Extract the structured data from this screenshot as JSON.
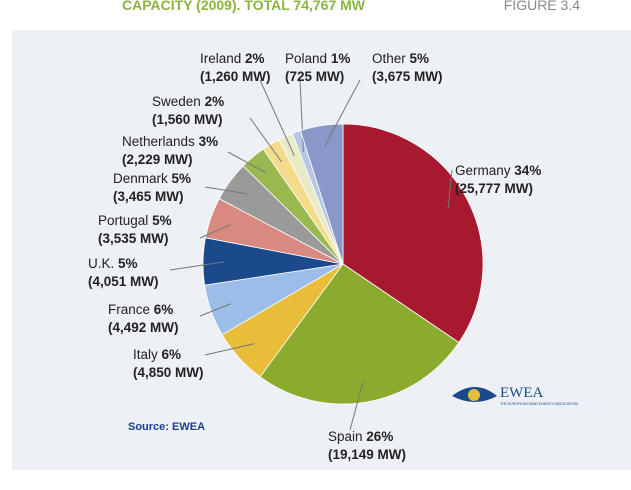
{
  "chart_data": {
    "type": "pie",
    "title": "CAPACITY (2009). TOTAL 74,767 MW",
    "figure_label": "FIGURE 3.4",
    "source": "Source: EWEA",
    "logo": {
      "name": "EWEA",
      "tagline": "THE EUROPEAN WIND ENERGY ASSOCIATION"
    },
    "categories": [
      "Germany",
      "Spain",
      "Italy",
      "France",
      "U.K.",
      "Portugal",
      "Denmark",
      "Netherlands",
      "Sweden",
      "Ireland",
      "Poland",
      "Other"
    ],
    "values": [
      25777,
      19149,
      4850,
      4492,
      4051,
      3535,
      3465,
      2229,
      1560,
      1260,
      725,
      3675
    ],
    "value_labels": [
      "(25,777 MW)",
      "(19,149 MW)",
      "(4,850 MW)",
      "(4,492 MW)",
      "(4,051 MW)",
      "(3,535 MW)",
      "(3,465 MW)",
      "(2,229 MW)",
      "(1,560 MW)",
      "(1,260 MW)",
      "(725 MW)",
      "(3,675 MW)"
    ],
    "percent_labels": [
      "34%",
      "26%",
      "6%",
      "6%",
      "5%",
      "5%",
      "5%",
      "3%",
      "2%",
      "2%",
      "1%",
      "5%"
    ],
    "colors": [
      "#a6192e",
      "#8aab2e",
      "#e8bd3a",
      "#9cbde8",
      "#1a4a8c",
      "#d98a80",
      "#9a9a9a",
      "#9ab850",
      "#f4dc8c",
      "#e9ebc8",
      "#b8c6e6",
      "#8b97c8"
    ]
  }
}
